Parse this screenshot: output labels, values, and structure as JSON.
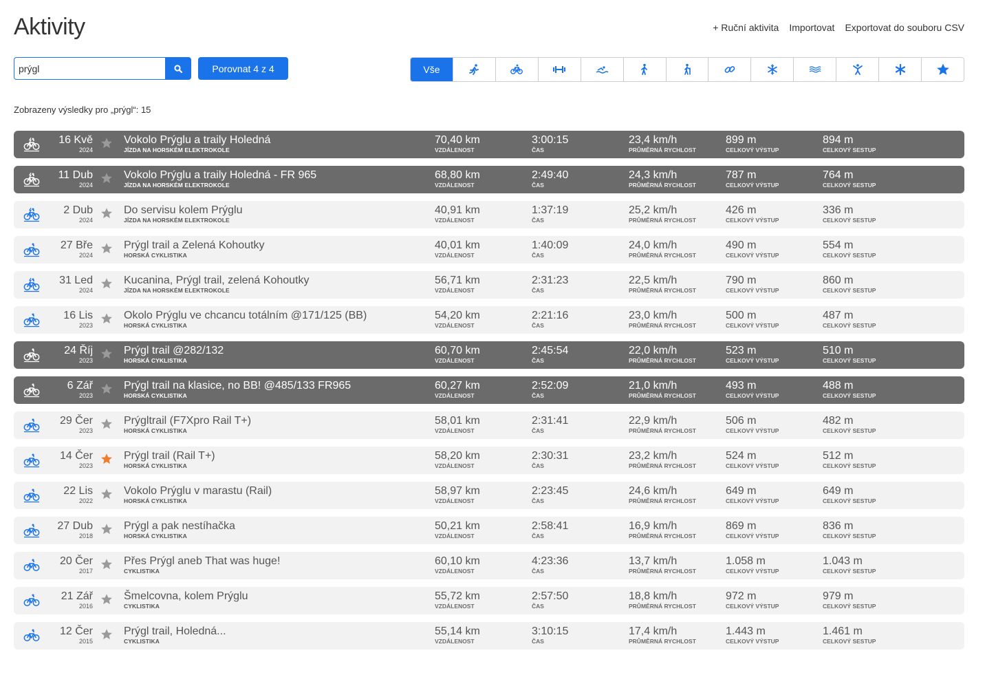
{
  "header": {
    "title": "Aktivity",
    "links": [
      "+ Ruční aktivita",
      "Importovat",
      "Exportovat do souboru CSV"
    ]
  },
  "search": {
    "value": "prýgl",
    "placeholder": ""
  },
  "compare_label": "Porovnat 4 z 4",
  "filters": [
    {
      "label": "Vše",
      "icon": "all",
      "active": true
    },
    {
      "label": "",
      "icon": "running-icon",
      "active": false
    },
    {
      "label": "",
      "icon": "cycling-icon",
      "active": false
    },
    {
      "label": "",
      "icon": "strength-icon",
      "active": false
    },
    {
      "label": "",
      "icon": "swimming-icon",
      "active": false
    },
    {
      "label": "",
      "icon": "walking-icon",
      "active": false
    },
    {
      "label": "",
      "icon": "hiking-icon",
      "active": false
    },
    {
      "label": "",
      "icon": "multisport-icon",
      "active": false
    },
    {
      "label": "",
      "icon": "winter-sports-icon",
      "active": false
    },
    {
      "label": "",
      "icon": "water-sports-icon",
      "active": false
    },
    {
      "label": "",
      "icon": "fitness-icon",
      "active": false
    },
    {
      "label": "",
      "icon": "other-icon",
      "active": false
    },
    {
      "label": "",
      "icon": "favorites-star-icon",
      "active": false
    }
  ],
  "results_info": "Zobrazeny výsledky pro „prýgl“: 15",
  "stat_labels": {
    "distance": "Vzdálenost",
    "time": "Čas",
    "speed": "Průměrná rychlost",
    "ascent": "Celkový výstup",
    "descent": "Celkový sestup"
  },
  "activities": [
    {
      "day": "16 Kvě",
      "year": "2024",
      "name": "Vokolo Prýglu a traily Holedná",
      "type": "Jízda na horském elektrokole",
      "distance": "70,40 km",
      "time": "3:00:15",
      "speed": "23,4 km/h",
      "ascent": "899 m",
      "descent": "894 m",
      "highlighted": true,
      "favorite": false,
      "icon": "ebike-icon"
    },
    {
      "day": "11 Dub",
      "year": "2024",
      "name": "Vokolo Prýglu a traily Holedná - FR 965",
      "type": "Jízda na horském elektrokole",
      "distance": "68,80 km",
      "time": "2:49:40",
      "speed": "24,3 km/h",
      "ascent": "787 m",
      "descent": "764 m",
      "highlighted": true,
      "favorite": false,
      "icon": "ebike-icon"
    },
    {
      "day": "2 Dub",
      "year": "2024",
      "name": "Do servisu kolem Prýglu",
      "type": "Jízda na horském elektrokole",
      "distance": "40,91 km",
      "time": "1:37:19",
      "speed": "25,2 km/h",
      "ascent": "426 m",
      "descent": "336 m",
      "highlighted": false,
      "favorite": false,
      "icon": "ebike-icon"
    },
    {
      "day": "27 Bře",
      "year": "2024",
      "name": "Prýgl trail a Zelená Kohoutky",
      "type": "Horská cyklistika",
      "distance": "40,01 km",
      "time": "1:40:09",
      "speed": "24,0 km/h",
      "ascent": "490 m",
      "descent": "554 m",
      "highlighted": false,
      "favorite": false,
      "icon": "mtb-icon"
    },
    {
      "day": "31 Led",
      "year": "2024",
      "name": "Kucanina, Prýgl trail, zelená Kohoutky",
      "type": "Jízda na horském elektrokole",
      "distance": "56,71 km",
      "time": "2:31:23",
      "speed": "22,5 km/h",
      "ascent": "790 m",
      "descent": "860 m",
      "highlighted": false,
      "favorite": false,
      "icon": "ebike-icon"
    },
    {
      "day": "16 Lis",
      "year": "2023",
      "name": "Okolo Prýglu ve chcancu totálním @171/125 (BB)",
      "type": "Horská cyklistika",
      "distance": "54,20 km",
      "time": "2:21:16",
      "speed": "23,0 km/h",
      "ascent": "500 m",
      "descent": "487 m",
      "highlighted": false,
      "favorite": false,
      "icon": "mtb-icon"
    },
    {
      "day": "24 Říj",
      "year": "2023",
      "name": "Prýgl trail @282/132",
      "type": "Horská cyklistika",
      "distance": "60,70 km",
      "time": "2:45:54",
      "speed": "22,0 km/h",
      "ascent": "523 m",
      "descent": "510 m",
      "highlighted": true,
      "favorite": false,
      "icon": "mtb-icon"
    },
    {
      "day": "6 Zář",
      "year": "2023",
      "name": "Prýgl trail na klasice, no BB! @485/133 FR965",
      "type": "Horská cyklistika",
      "distance": "60,27 km",
      "time": "2:52:09",
      "speed": "21,0 km/h",
      "ascent": "493 m",
      "descent": "488 m",
      "highlighted": true,
      "favorite": false,
      "icon": "mtb-icon"
    },
    {
      "day": "29 Čer",
      "year": "2023",
      "name": "Prýgltrail (F7Xpro Rail T+)",
      "type": "Horská cyklistika",
      "distance": "58,01 km",
      "time": "2:31:41",
      "speed": "22,9 km/h",
      "ascent": "506 m",
      "descent": "482 m",
      "highlighted": false,
      "favorite": false,
      "icon": "mtb-icon"
    },
    {
      "day": "14 Čer",
      "year": "2023",
      "name": "Prýgl trail (Rail T+)",
      "type": "Horská cyklistika",
      "distance": "58,20 km",
      "time": "2:30:31",
      "speed": "23,2 km/h",
      "ascent": "524 m",
      "descent": "512 m",
      "highlighted": false,
      "favorite": true,
      "icon": "mtb-icon"
    },
    {
      "day": "22 Lis",
      "year": "2022",
      "name": "Vokolo Prýglu v marastu (Rail)",
      "type": "Horská cyklistika",
      "distance": "58,97 km",
      "time": "2:23:45",
      "speed": "24,6 km/h",
      "ascent": "649 m",
      "descent": "649 m",
      "highlighted": false,
      "favorite": false,
      "icon": "mtb-icon"
    },
    {
      "day": "27 Dub",
      "year": "2018",
      "name": "Prýgl a pak nestíhačka",
      "type": "Horská cyklistika",
      "distance": "50,21 km",
      "time": "2:58:41",
      "speed": "16,9 km/h",
      "ascent": "869 m",
      "descent": "836 m",
      "highlighted": false,
      "favorite": false,
      "icon": "mtb-icon"
    },
    {
      "day": "20 Čer",
      "year": "2017",
      "name": "Přes Prýgl aneb That was huge!",
      "type": "Cyklistika",
      "distance": "60,10 km",
      "time": "4:23:36",
      "speed": "13,7 km/h",
      "ascent": "1.058 m",
      "descent": "1.043 m",
      "highlighted": false,
      "favorite": false,
      "icon": "cycling-icon"
    },
    {
      "day": "21 Zář",
      "year": "2016",
      "name": "Šmelcovna, kolem Prýglu",
      "type": "Cyklistika",
      "distance": "55,72 km",
      "time": "2:57:50",
      "speed": "18,8 km/h",
      "ascent": "972 m",
      "descent": "979 m",
      "highlighted": false,
      "favorite": false,
      "icon": "cycling-icon"
    },
    {
      "day": "12 Čer",
      "year": "2015",
      "name": "Prýgl trail, Holedná...",
      "type": "Cyklistika",
      "distance": "55,14 km",
      "time": "3:10:15",
      "speed": "17,4 km/h",
      "ascent": "1.443 m",
      "descent": "1.461 m",
      "highlighted": false,
      "favorite": false,
      "icon": "cycling-icon"
    }
  ],
  "colors": {
    "accent": "#1a73e8",
    "highlight_row": "#6b6b6b",
    "normal_row": "#f2f2f2",
    "favorite_star": "#ee7d2e",
    "default_star": "#9a9a9a"
  }
}
